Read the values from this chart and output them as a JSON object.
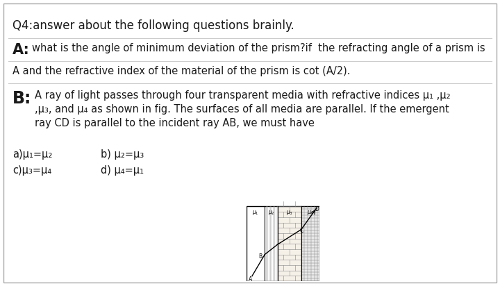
{
  "bg_color": "#ffffff",
  "text_color": "#1a1a1a",
  "title_line": "Q4:answer about the following questions brainly.",
  "q_a_text1": "what is the angle of minimum deviation of the prism?if  the refracting angle of a prism is",
  "q_a_text2": "A and the refractive index of the material of the prism is cot (A/2).",
  "q_b_text_line1": "A ray of light passes through four transparent media with refractive indices μ₁ ,μ₂",
  "q_b_text_line2": ",μ₃, and μ₄ as shown in fig. The surfaces of all media are parallel. If the emergent",
  "q_b_text_line3": "ray CD is parallel to the incident ray AB, we must have",
  "opt_a": "a)μ₁=μ₂",
  "opt_b": "b) μ₂=μ₃",
  "opt_c": "c)μ₃=μ₄",
  "opt_d": "d) μ₄=μ₁"
}
